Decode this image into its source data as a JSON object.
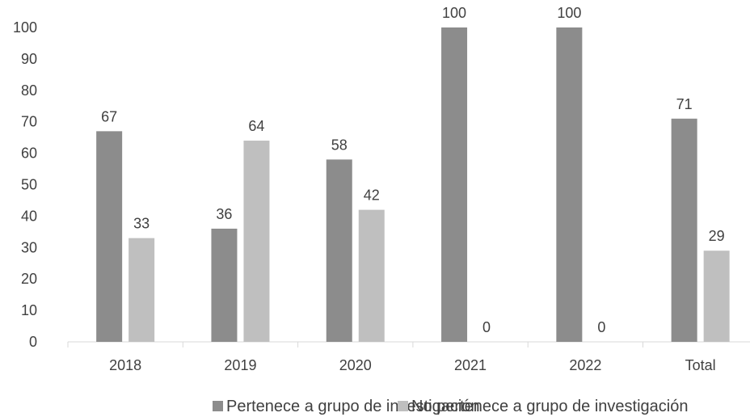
{
  "chart_data": {
    "type": "bar",
    "categories": [
      "2018",
      "2019",
      "2020",
      "2021",
      "2022",
      "Total"
    ],
    "series": [
      {
        "name": "Pertenece a grupo de investigación",
        "values": [
          67,
          36,
          58,
          100,
          100,
          71
        ],
        "color": "#8c8c8c"
      },
      {
        "name": "No pertenece a grupo de investigación",
        "values": [
          33,
          64,
          42,
          0,
          0,
          29
        ],
        "color": "#bfbfbf"
      }
    ],
    "yticks": [
      0,
      10,
      20,
      30,
      40,
      50,
      60,
      70,
      80,
      90,
      100
    ],
    "ylim": [
      0,
      100
    ],
    "grid": false,
    "legend_position": "bottom"
  }
}
